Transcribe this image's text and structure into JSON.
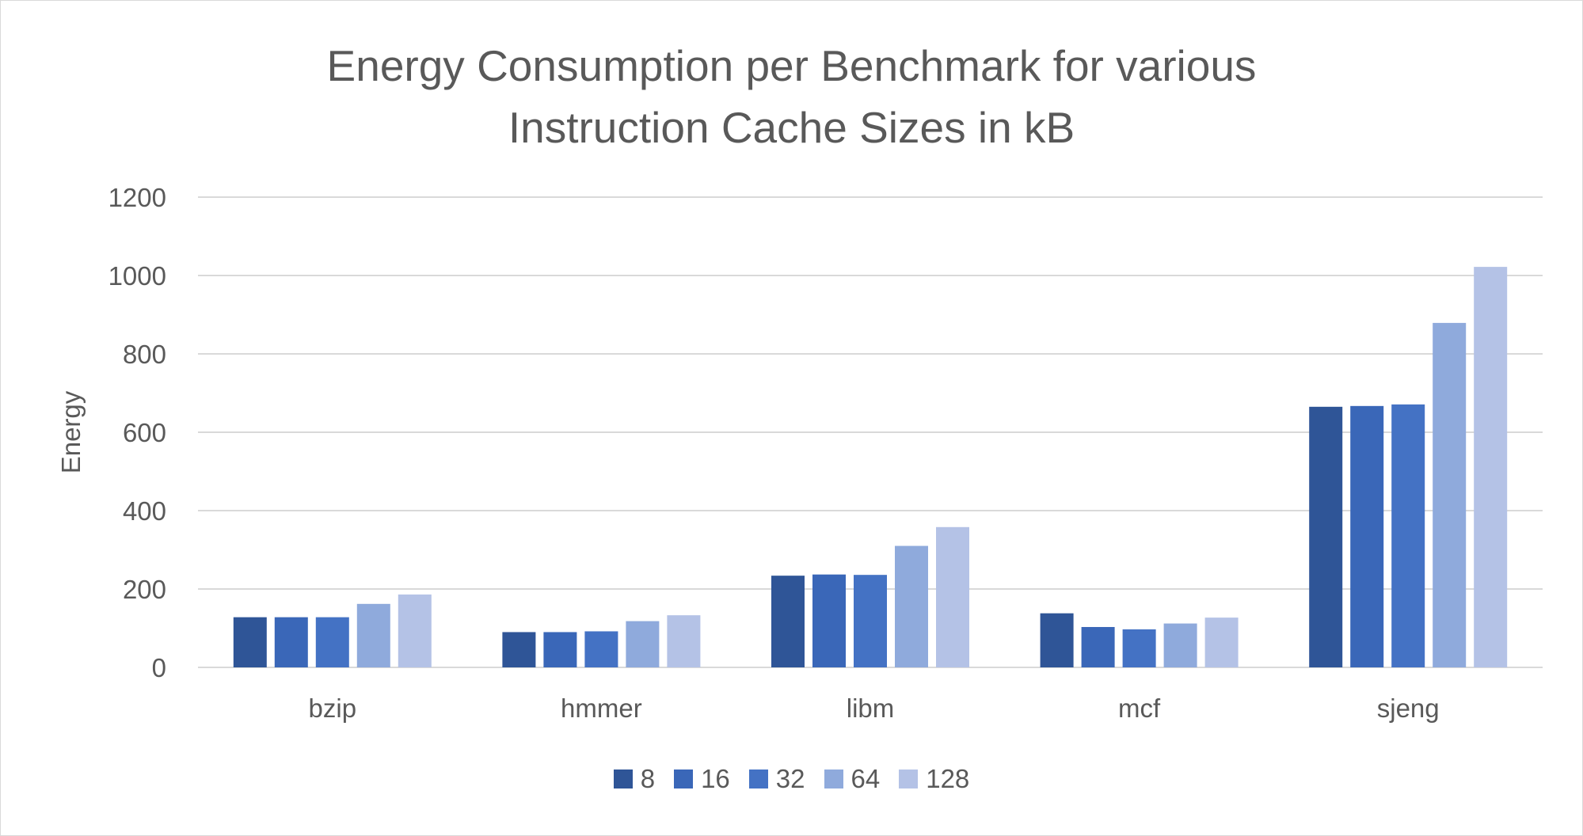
{
  "chart_data": {
    "type": "bar",
    "title": "Energy Consumption per Benchmark for various\nInstruction Cache Sizes in kB",
    "xlabel": "",
    "ylabel": "Energy",
    "ylim": [
      0,
      1200
    ],
    "yticks": [
      0,
      200,
      400,
      600,
      800,
      1000,
      1200
    ],
    "grid": true,
    "legend_position": "bottom",
    "categories": [
      "bzip",
      "hmmer",
      "libm",
      "mcf",
      "sjeng"
    ],
    "series": [
      {
        "name": "8",
        "color": "#2f5597",
        "values": [
          128,
          90,
          234,
          138,
          665
        ]
      },
      {
        "name": "16",
        "color": "#3a67b8",
        "values": [
          128,
          90,
          237,
          103,
          667
        ]
      },
      {
        "name": "32",
        "color": "#4472c4",
        "values": [
          128,
          92,
          236,
          97,
          671
        ]
      },
      {
        "name": "64",
        "color": "#8faadc",
        "values": [
          162,
          118,
          310,
          112,
          879
        ]
      },
      {
        "name": "128",
        "color": "#b4c2e6",
        "values": [
          186,
          133,
          358,
          127,
          1022
        ]
      }
    ]
  }
}
